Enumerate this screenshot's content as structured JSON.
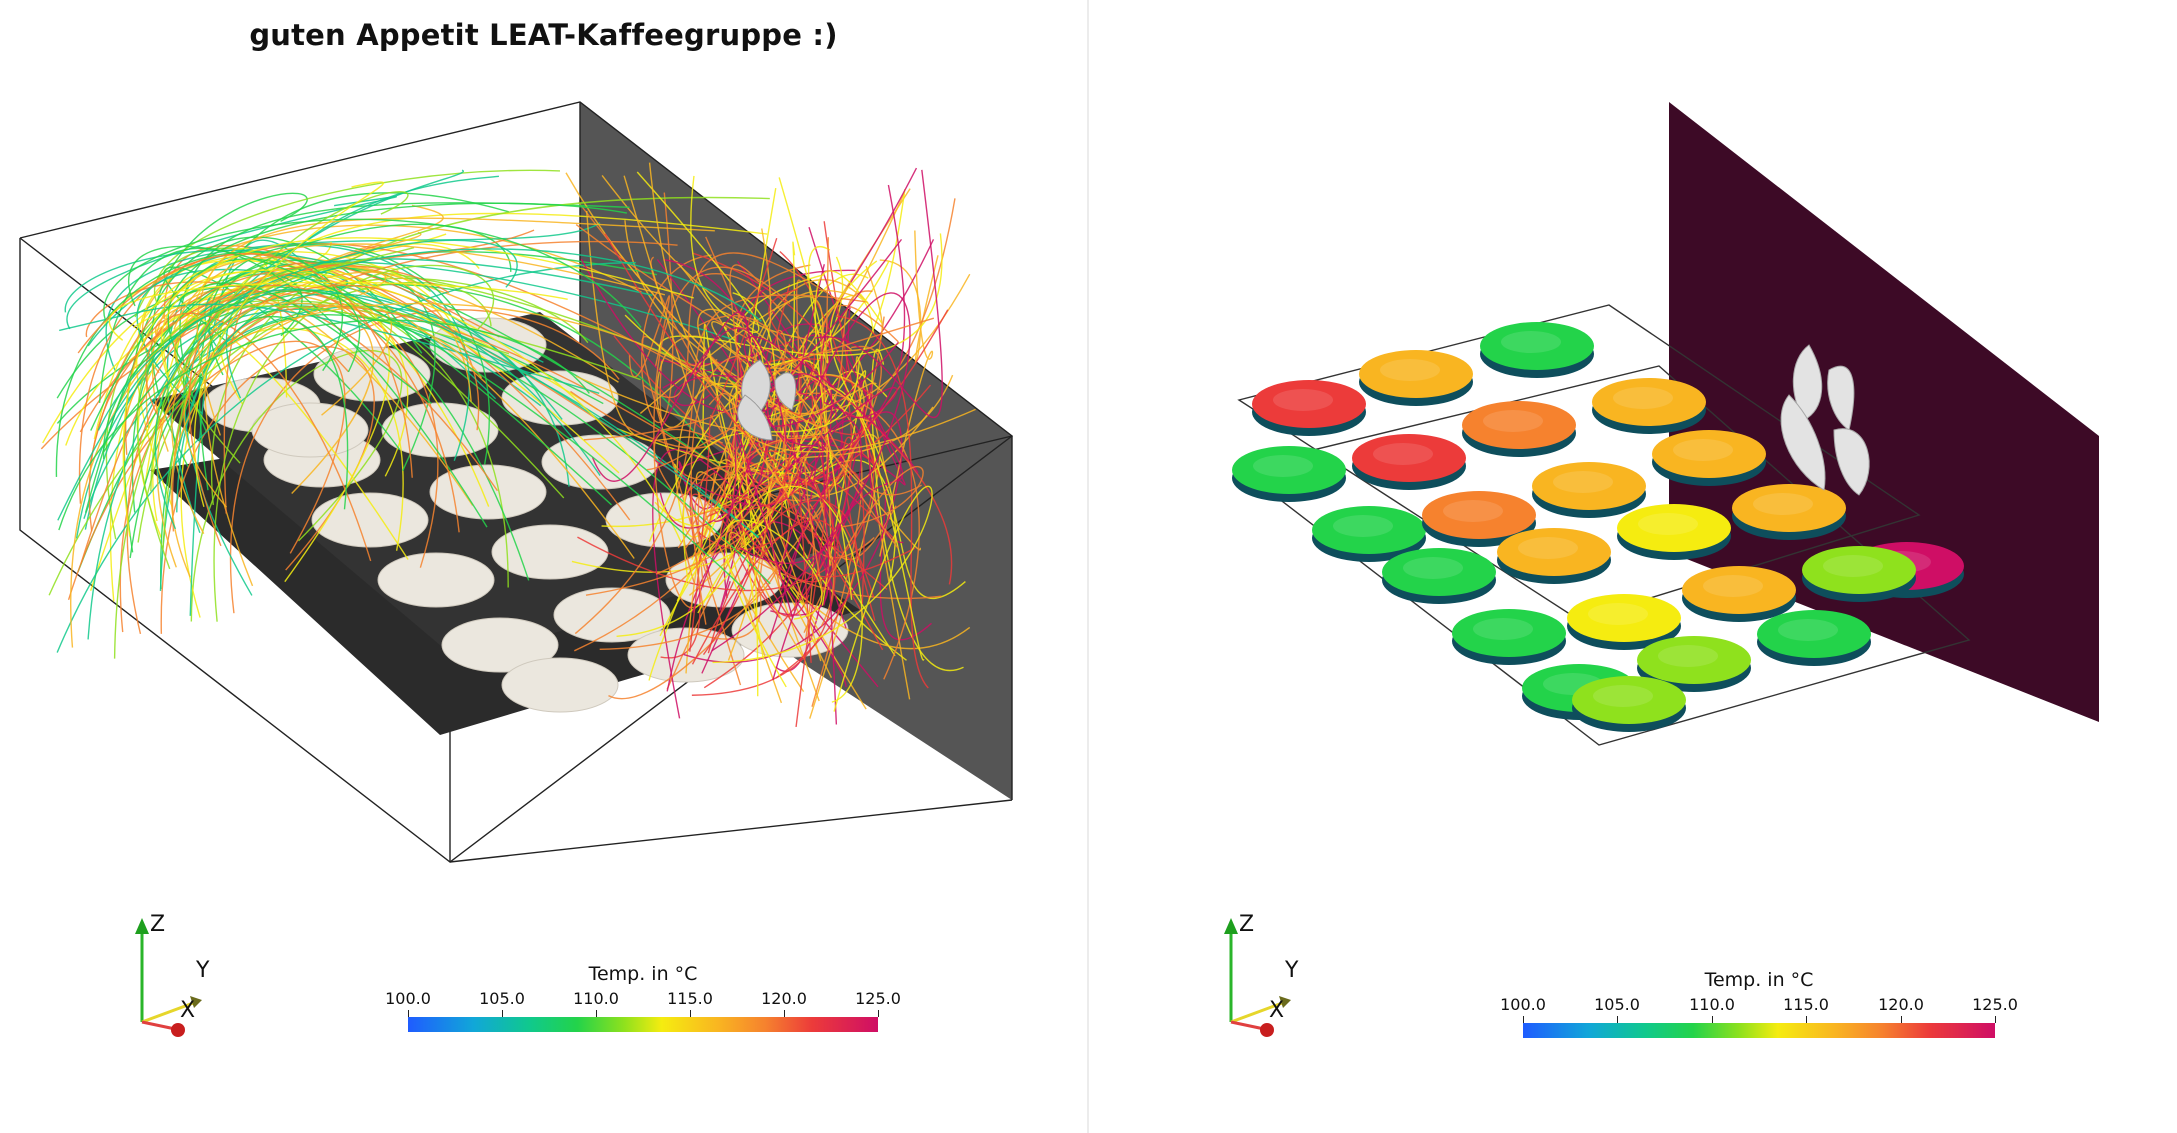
{
  "title": "guten Appetit LEAT-Kaffeegruppe :)",
  "colorbar": {
    "title": "Temp. in °C",
    "ticks": [
      "100.0",
      "105.0",
      "110.0",
      "115.0",
      "120.0",
      "125.0"
    ],
    "range": [
      100.0,
      125.0
    ],
    "colors": [
      "#1f5cff",
      "#11a7d8",
      "#10c98c",
      "#23d34a",
      "#8fe11d",
      "#f5ec10",
      "#f9b521",
      "#f6822e",
      "#ec3b3a",
      "#cf0e65"
    ]
  },
  "axes_triad": {
    "x": "X",
    "y": "Y",
    "z": "Z"
  },
  "colors": {
    "wall_left_view": "#4d4d4d",
    "tray": "#2e2e2e",
    "cookie": "#e9e5dc",
    "wall_right_view": "#3d0a26"
  },
  "icons": [
    "axes-triad-icon"
  ]
}
